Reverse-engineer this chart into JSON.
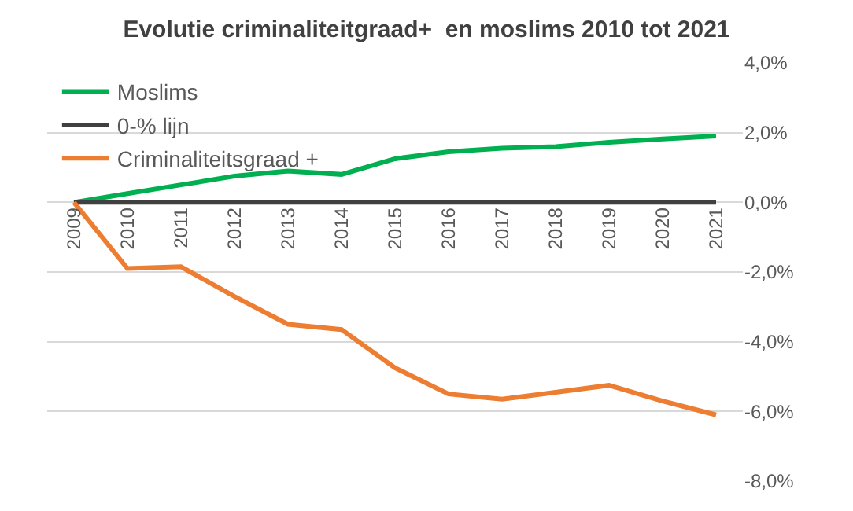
{
  "chart_data": {
    "type": "line",
    "title": "Evolutie criminaliteitgraad+  en moslims 2010 tot 2021",
    "categories": [
      "2009",
      "2010",
      "2011",
      "2012",
      "2013",
      "2014",
      "2015",
      "2016",
      "2017",
      "2018",
      "2019",
      "2020",
      "2021"
    ],
    "series": [
      {
        "name": "Moslims",
        "color": "#00b050",
        "values": [
          0,
          0.25,
          0.5,
          0.75,
          0.9,
          0.8,
          1.25,
          1.45,
          1.55,
          1.6,
          1.72,
          1.82,
          1.9
        ]
      },
      {
        "name": "0-% lijn",
        "color": "#404040",
        "values": [
          0,
          0,
          0,
          0,
          0,
          0,
          0,
          0,
          0,
          0,
          0,
          0,
          0
        ]
      },
      {
        "name": "Criminaliteitsgraad +",
        "color": "#ed7d31",
        "values": [
          0,
          -1.9,
          -1.85,
          -2.7,
          -3.5,
          -3.65,
          -4.75,
          -5.5,
          -5.65,
          -5.45,
          -5.25,
          -5.7,
          -6.1
        ]
      }
    ],
    "ylim": [
      -8,
      4
    ],
    "yticks": [
      {
        "value": -8,
        "label": "-8,0%"
      },
      {
        "value": -6,
        "label": "-6,0%"
      },
      {
        "value": -4,
        "label": "-4,0%"
      },
      {
        "value": -2,
        "label": "-2,0%"
      },
      {
        "value": 0,
        "label": "0,0%"
      },
      {
        "value": 2,
        "label": "2,0%"
      },
      {
        "value": 4,
        "label": "4,0%"
      }
    ],
    "grid": "y",
    "legend": "top left",
    "marker": "none",
    "line_style": "solid"
  }
}
